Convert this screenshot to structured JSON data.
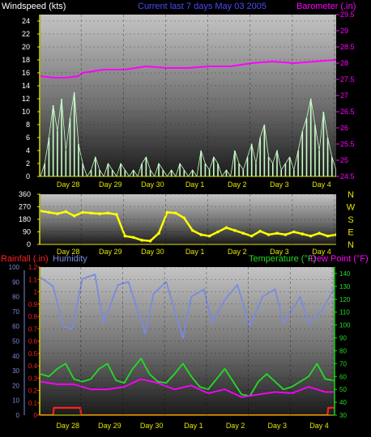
{
  "header": {
    "left_label": "Windspeed (kts)",
    "center_label": "Current last 7 days May 03 2005",
    "right_label": "Barometer (.in)"
  },
  "colors": {
    "background": "#000000",
    "axis_yellow": "#e6e600",
    "title_blue": "#4a4aff",
    "barometer": "#ff00ff",
    "wind_speed": "#c8ffc8",
    "wind_avg": "#44dd55",
    "wind_dir": "#ffff00",
    "rain": "#ff2020",
    "humidity": "#7a8ae0",
    "temperature": "#22dd22",
    "dewpoint": "#ff00ff"
  },
  "chart_data": [
    {
      "id": "wind",
      "type": "line",
      "title": "Current last 7 days May 03 2005",
      "x_ticks": [
        "Day 28",
        "Day 29",
        "Day 30",
        "Day 1",
        "Day 2",
        "Day 3",
        "Day 4"
      ],
      "y_left": {
        "label": "Windspeed (kts)",
        "ticks": [
          0,
          2,
          4,
          6,
          8,
          10,
          12,
          14,
          16,
          18,
          20,
          22,
          24
        ],
        "range": [
          0,
          25
        ]
      },
      "y_right": {
        "label": "Barometer (.in)",
        "ticks": [
          24.5,
          25,
          25.5,
          26,
          26.5,
          27,
          27.5,
          28,
          28.5,
          29,
          29.5
        ],
        "range": [
          24.5,
          29.5
        ]
      },
      "series": [
        {
          "name": "Windspeed",
          "x": [
            0,
            0.1,
            0.2,
            0.3,
            0.4,
            0.5,
            0.6,
            0.7,
            0.8,
            0.9,
            1,
            1.1,
            1.2,
            1.3,
            1.4,
            1.5,
            1.6,
            1.7,
            1.8,
            1.9,
            2,
            2.1,
            2.2,
            2.3,
            2.4,
            2.5,
            2.6,
            2.7,
            2.8,
            2.9,
            3,
            3.1,
            3.2,
            3.3,
            3.4,
            3.5,
            3.6,
            3.7,
            3.8,
            3.9,
            4,
            4.1,
            4.2,
            4.3,
            4.4,
            4.5,
            4.6,
            4.7,
            4.8,
            4.9,
            5,
            5.1,
            5.2,
            5.3,
            5.4,
            5.5,
            5.6,
            5.7,
            5.8,
            5.9,
            6,
            6.1,
            6.2,
            6.3,
            6.4,
            6.5,
            6.6,
            6.7,
            6.8,
            6.9,
            7
          ],
          "values": [
            0,
            2,
            6,
            11,
            7,
            12,
            4,
            9,
            13,
            5,
            2,
            0,
            1,
            3,
            1,
            0,
            2,
            1,
            0,
            2,
            1,
            0,
            1,
            0,
            2,
            3,
            1,
            0,
            2,
            1,
            0,
            1,
            0,
            2,
            1,
            0,
            1,
            0,
            4,
            2,
            1,
            3,
            2,
            0,
            1,
            0,
            4,
            2,
            1,
            3,
            5,
            2,
            6,
            8,
            3,
            2,
            4,
            1,
            2,
            3,
            1,
            4,
            7,
            9,
            12,
            8,
            4,
            10,
            6,
            3,
            1
          ]
        },
        {
          "name": "Barometer",
          "x": [
            0,
            0.3,
            0.6,
            0.9,
            1,
            1.5,
            2,
            2.5,
            3,
            3.5,
            4,
            4.5,
            5,
            5.5,
            6,
            6.5,
            7
          ],
          "values": [
            27.6,
            27.55,
            27.55,
            27.6,
            27.7,
            27.8,
            27.8,
            27.9,
            27.85,
            27.85,
            27.9,
            27.9,
            28.0,
            28.05,
            28.0,
            28.05,
            28.1
          ]
        }
      ]
    },
    {
      "id": "direction",
      "type": "line",
      "x_ticks": [
        "Day 28",
        "Day 29",
        "Day 30",
        "Day 1",
        "Day 2",
        "Day 3",
        "Day 4"
      ],
      "y_left": {
        "ticks": [
          0,
          90,
          180,
          270,
          360
        ],
        "range": [
          0,
          360
        ]
      },
      "y_right": {
        "labels": [
          "N",
          "W",
          "S",
          "E",
          "N"
        ]
      },
      "series": [
        {
          "name": "Wind direction",
          "x": [
            0,
            0.2,
            0.4,
            0.6,
            0.8,
            1,
            1.2,
            1.4,
            1.6,
            1.8,
            2,
            2.2,
            2.4,
            2.6,
            2.8,
            3,
            3.2,
            3.4,
            3.6,
            3.8,
            4,
            4.2,
            4.4,
            4.6,
            4.8,
            5,
            5.2,
            5.4,
            5.6,
            5.8,
            6,
            6.2,
            6.4,
            6.6,
            6.8,
            7
          ],
          "values": [
            240,
            230,
            220,
            235,
            205,
            230,
            225,
            220,
            225,
            215,
            60,
            50,
            30,
            25,
            80,
            230,
            225,
            190,
            100,
            70,
            60,
            90,
            120,
            100,
            80,
            60,
            95,
            70,
            80,
            70,
            90,
            75,
            60,
            80,
            60,
            70
          ]
        }
      ]
    },
    {
      "id": "temperature",
      "type": "line",
      "x_ticks": [
        "Day 28",
        "Day 29",
        "Day 30",
        "Day 1",
        "Day 2",
        "Day 3",
        "Day 4"
      ],
      "y_rain": {
        "label": "Rainfall (.in)",
        "ticks": [
          0,
          0.1,
          0.2,
          0.3,
          0.4,
          0.5,
          0.6,
          0.7,
          0.8,
          0.9,
          1,
          1.1,
          1.2
        ],
        "range": [
          0,
          1.2
        ]
      },
      "y_humidity": {
        "label": "Humidity",
        "ticks": [
          0,
          10,
          20,
          30,
          40,
          50,
          60,
          70,
          80,
          90,
          100
        ],
        "range": [
          0,
          100
        ]
      },
      "y_right": {
        "label": "Temperature (°F)",
        "label2": "Dew Point (°F)",
        "ticks": [
          30,
          40,
          50,
          60,
          70,
          80,
          90,
          100,
          110,
          120,
          130,
          140
        ],
        "range": [
          30,
          145
        ]
      },
      "series": [
        {
          "name": "Humidity",
          "x": [
            0,
            0.3,
            0.55,
            0.75,
            1.0,
            1.3,
            1.5,
            1.85,
            2.1,
            2.5,
            2.7,
            3.0,
            3.4,
            3.6,
            3.9,
            4.1,
            4.4,
            4.7,
            5.0,
            5.3,
            5.6,
            5.8,
            6.2,
            6.4,
            6.7,
            7
          ],
          "values": [
            93,
            87,
            60,
            58,
            92,
            95,
            62,
            88,
            90,
            55,
            82,
            90,
            52,
            80,
            85,
            62,
            78,
            88,
            60,
            80,
            85,
            62,
            80,
            62,
            70,
            85
          ]
        },
        {
          "name": "Temperature",
          "x": [
            0,
            0.2,
            0.4,
            0.6,
            0.8,
            1.0,
            1.2,
            1.4,
            1.6,
            1.8,
            2.0,
            2.2,
            2.4,
            2.6,
            2.8,
            3.0,
            3.2,
            3.4,
            3.6,
            3.8,
            4.0,
            4.2,
            4.4,
            4.6,
            4.8,
            5.0,
            5.2,
            5.4,
            5.6,
            5.8,
            6.0,
            6.2,
            6.4,
            6.6,
            6.8,
            7
          ],
          "values": [
            62,
            60,
            66,
            70,
            58,
            56,
            58,
            66,
            70,
            57,
            55,
            66,
            74,
            62,
            56,
            55,
            62,
            70,
            60,
            52,
            50,
            58,
            66,
            56,
            46,
            45,
            56,
            62,
            56,
            50,
            52,
            56,
            60,
            70,
            58,
            57
          ]
        },
        {
          "name": "Dew Point",
          "x": [
            0,
            0.4,
            0.8,
            1.2,
            1.6,
            2.0,
            2.4,
            2.8,
            3.2,
            3.6,
            4.0,
            4.4,
            4.8,
            5.2,
            5.6,
            6.0,
            6.4,
            6.8,
            7
          ],
          "values": [
            56,
            54,
            54,
            50,
            50,
            52,
            58,
            55,
            50,
            53,
            47,
            50,
            44,
            46,
            48,
            47,
            52,
            48,
            48
          ]
        },
        {
          "name": "Rainfall",
          "x": [
            0,
            0.3,
            0.32,
            0.95,
            0.97,
            6.85,
            6.87,
            7
          ],
          "values": [
            0,
            0,
            0.06,
            0.06,
            0,
            0,
            0.06,
            0.06
          ]
        }
      ]
    }
  ],
  "bottom_header": {
    "rain_label": "Rainfall (.in)",
    "humidity_label": "Humidity",
    "temp_label": "Temperature (°F)",
    "dew_label": "Dew Point (°F)"
  }
}
